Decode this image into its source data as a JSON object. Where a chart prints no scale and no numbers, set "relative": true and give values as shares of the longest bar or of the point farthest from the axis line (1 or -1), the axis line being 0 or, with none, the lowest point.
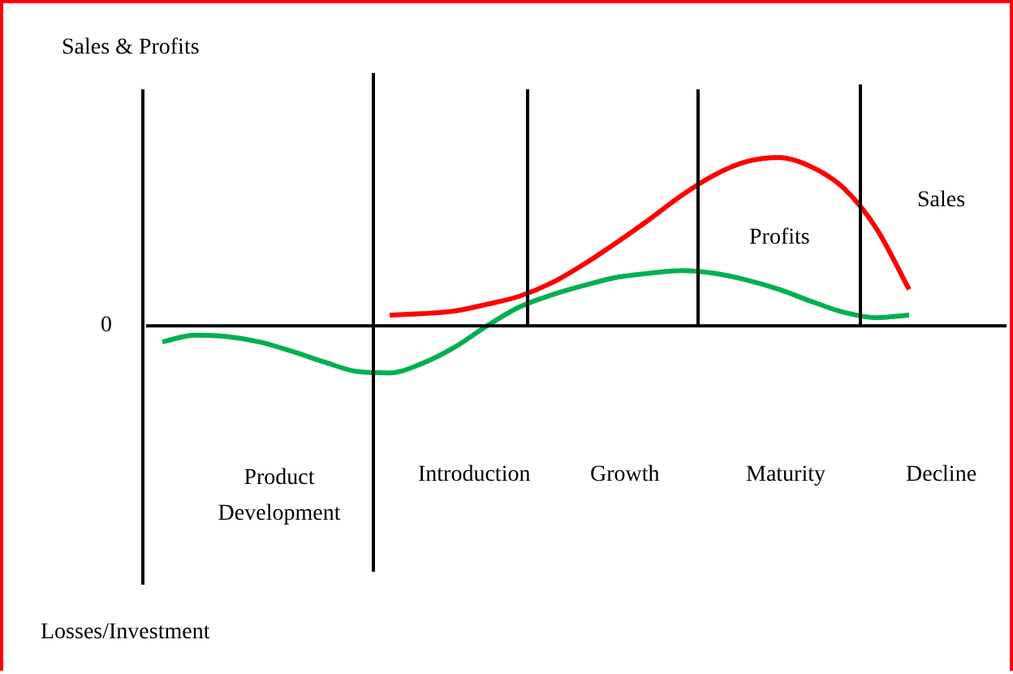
{
  "chart_data": {
    "type": "line",
    "relative": true,
    "ylabel": "Sales & Profits",
    "annotations": [
      "0",
      "Product Development",
      "Introduction",
      "Growth",
      "Maturity",
      "Decline",
      "Losses/Investment"
    ],
    "categories": [
      null,
      null,
      null,
      null,
      null,
      null,
      null,
      null,
      null,
      null,
      null,
      null,
      null,
      null,
      null,
      null,
      null,
      null,
      null,
      null,
      null,
      null,
      null,
      null,
      null,
      null,
      null
    ],
    "series": [
      {
        "name": "Sales",
        "color": "#ff0000",
        "values": [
          null,
          null,
          null,
          null,
          null,
          null,
          null,
          0.064,
          0.072,
          0.088,
          0.128,
          0.176,
          0.256,
          0.368,
          0.496,
          0.632,
          0.776,
          0.896,
          0.976,
          1,
          0.944,
          0.816,
          0.576,
          0.216,
          null,
          null,
          null
        ]
      },
      {
        "name": "Profits",
        "color": "#00b050",
        "values": [
          -0.096,
          -0.056,
          -0.064,
          -0.096,
          -0.152,
          -0.216,
          -0.272,
          -0.28,
          -0.224,
          -0.128,
          0,
          0.112,
          0.184,
          0.24,
          0.288,
          0.312,
          0.328,
          0.312,
          0.272,
          0.216,
          0.144,
          0.08,
          0.048,
          0.064,
          null,
          null,
          null
        ]
      }
    ],
    "legend": false,
    "marker": "none",
    "line_style": "solid"
  }
}
